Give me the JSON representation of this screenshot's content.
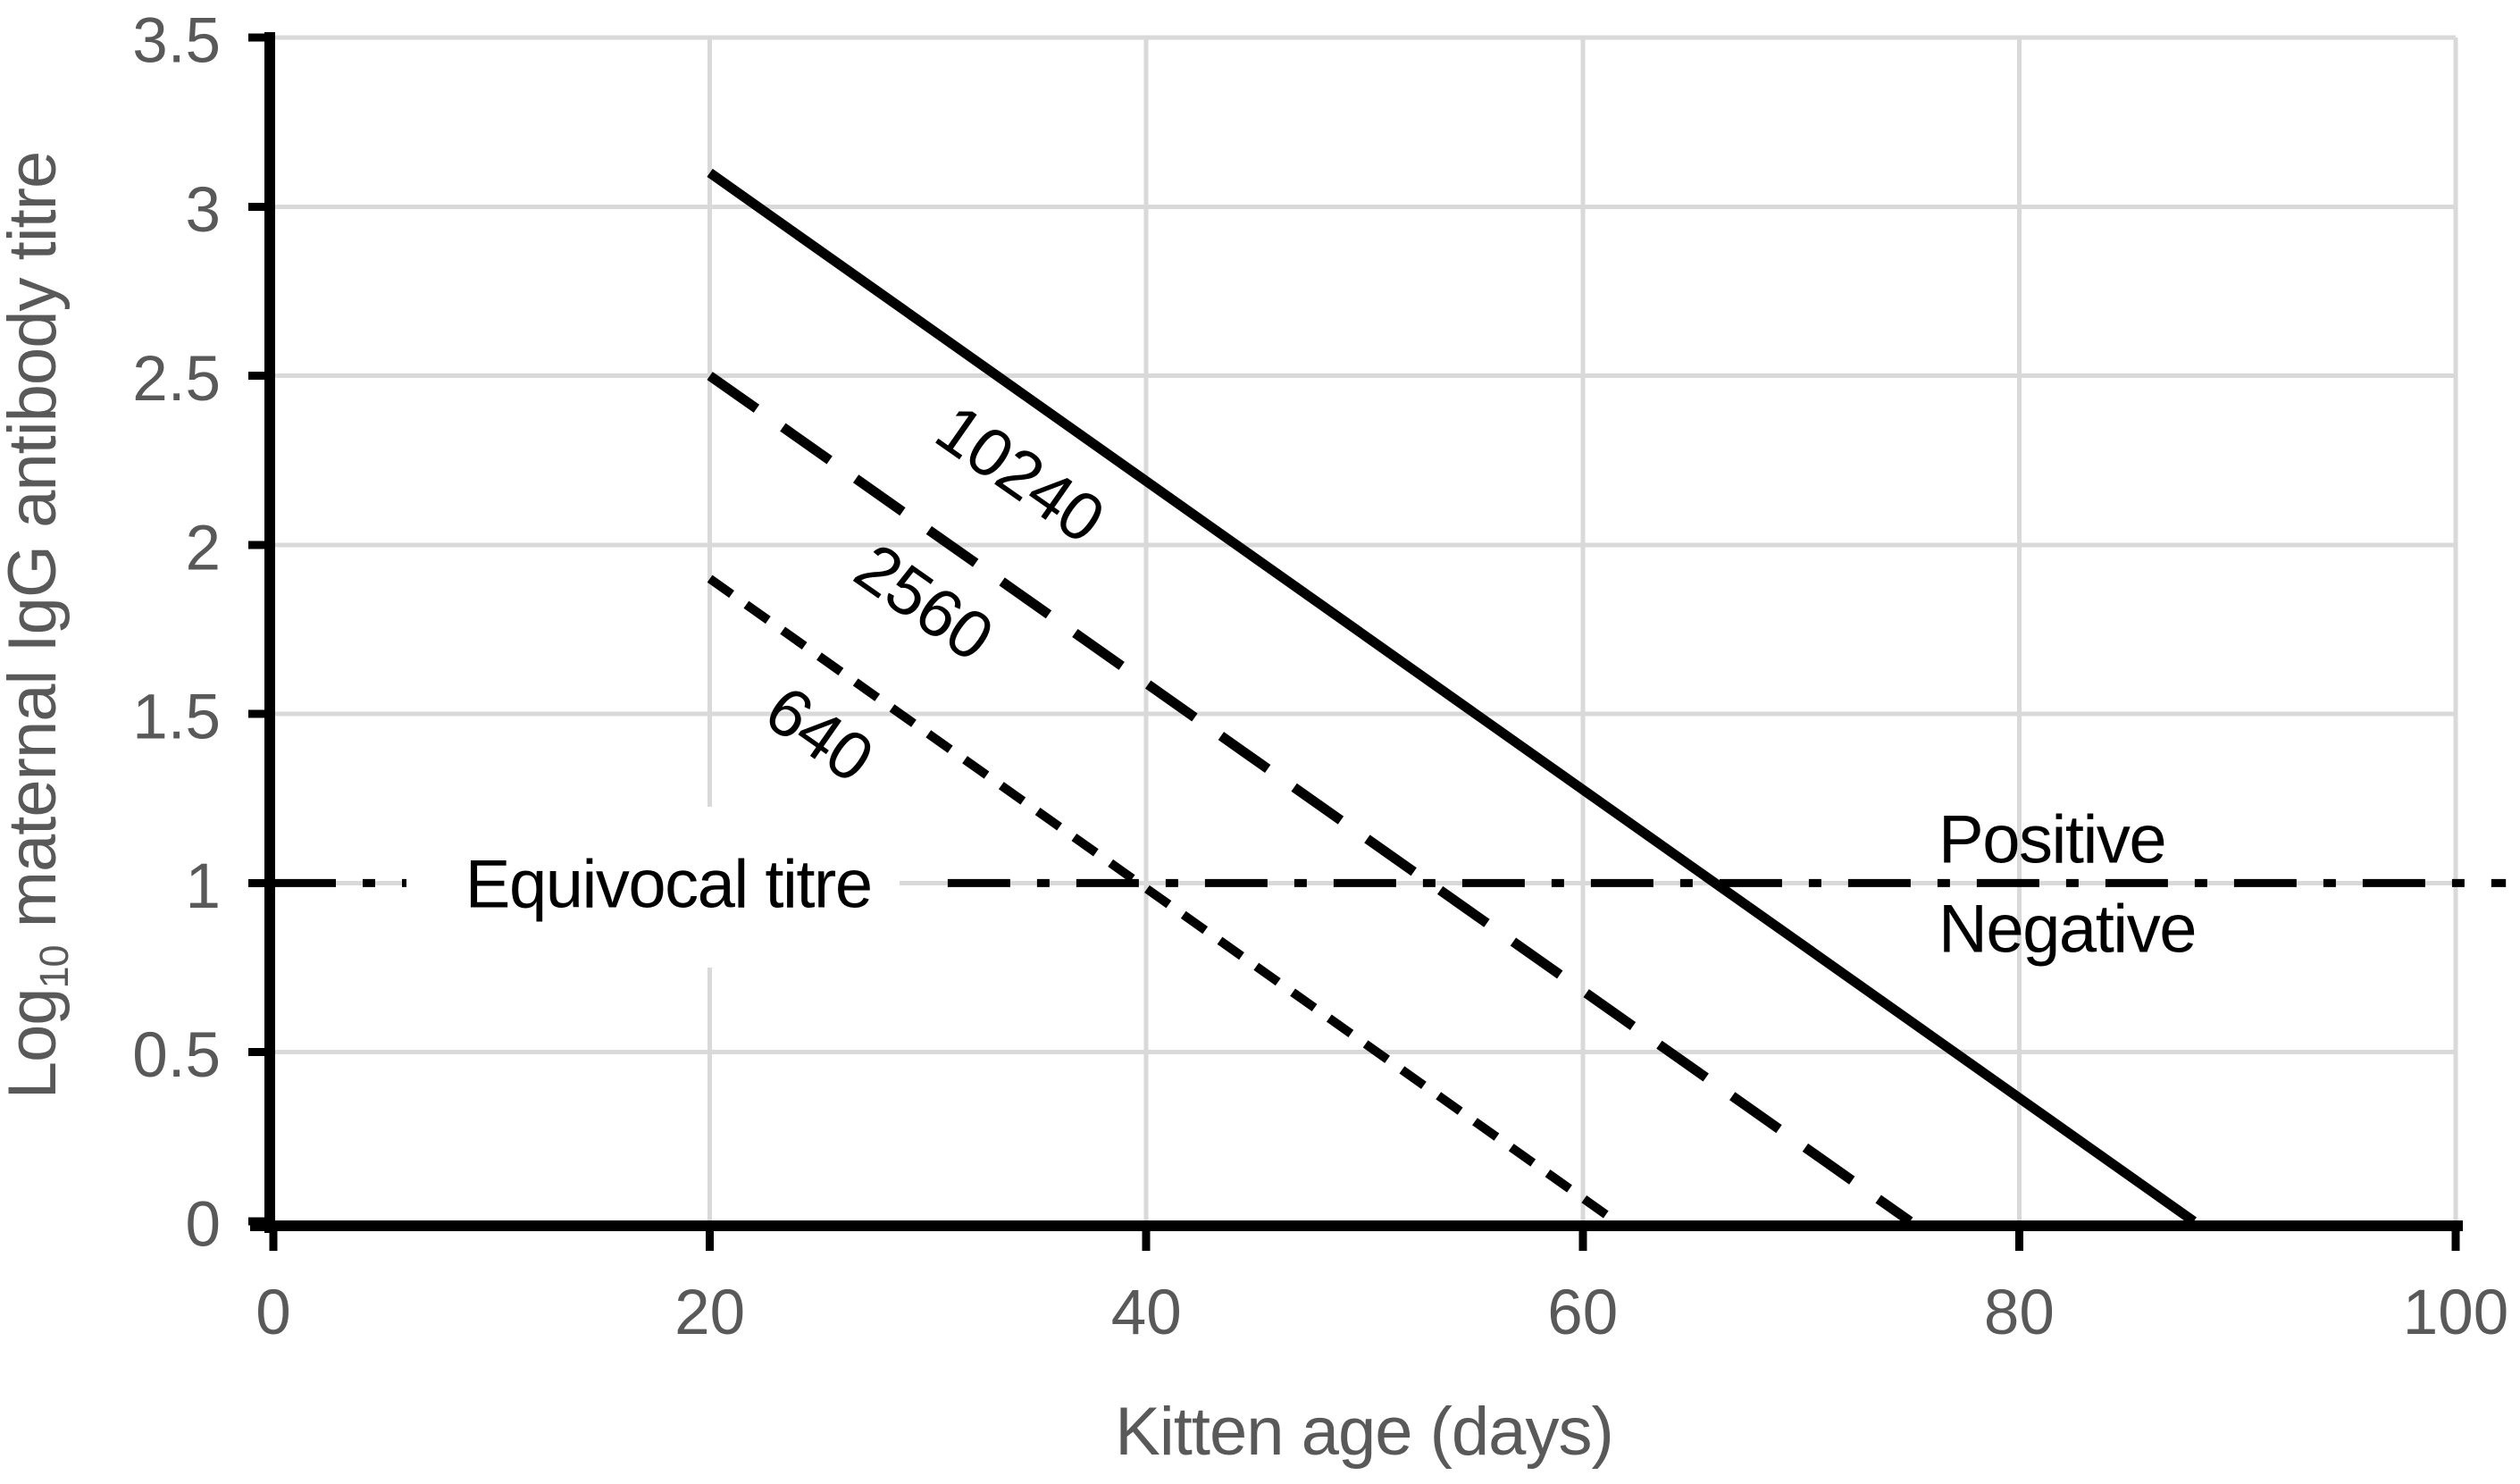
{
  "figure": {
    "background": "#ffffff",
    "text_color": "#595959",
    "line_color": "#000000",
    "gridline_color": "#d9d9d9"
  },
  "chart_data": {
    "type": "line",
    "title": "",
    "xlabel": "Kitten age (days)",
    "ylabel": "Log10 maternal IgG antibody titre",
    "ylabel_parts": {
      "prefix": "Log",
      "subscript": "10",
      "suffix": " maternal IgG antibody titre"
    },
    "xlim": [
      0,
      100
    ],
    "ylim": [
      0,
      3.5
    ],
    "x_ticks": [
      0,
      20,
      40,
      60,
      80,
      100
    ],
    "y_ticks": [
      0,
      0.5,
      1,
      1.5,
      2,
      2.5,
      3,
      3.5
    ],
    "grid": true,
    "legend_position": "none",
    "series": [
      {
        "name": "titre-10240",
        "line_style": "solid",
        "points": [
          [
            20,
            3.1
          ],
          [
            88,
            0
          ]
        ],
        "label": {
          "text": "10240",
          "x": 34.2,
          "y": 2.21,
          "rotation_deg": 35
        }
      },
      {
        "name": "titre-2560",
        "line_style": "long-dash",
        "points": [
          [
            20,
            2.5
          ],
          [
            75,
            0
          ]
        ],
        "label": {
          "text": "2560",
          "x": 29.8,
          "y": 1.83,
          "rotation_deg": 35
        }
      },
      {
        "name": "titre-640",
        "line_style": "short-dash",
        "points": [
          [
            20,
            1.9
          ],
          [
            61.5,
            0
          ]
        ],
        "label": {
          "text": "640",
          "x": 25.0,
          "y": 1.44,
          "rotation_deg": 35
        }
      }
    ],
    "reference_line": {
      "name": "equivocal-titre",
      "line_style": "dash-dot",
      "y": 1,
      "segments_x": [
        [
          0,
          6.2
        ],
        [
          30.9,
          102.3
        ]
      ],
      "label": {
        "text": "Equivocal titre",
        "x": 18.1,
        "y": 1.007
      }
    },
    "annotations": [
      {
        "id": "positive",
        "text": "Positive",
        "x": 76.3,
        "y": 1.128,
        "anchor": "start"
      },
      {
        "id": "negative",
        "text": "Negative",
        "x": 76.3,
        "y": 0.864,
        "anchor": "start"
      }
    ]
  }
}
